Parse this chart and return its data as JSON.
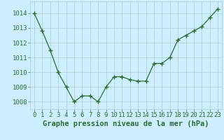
{
  "x": [
    0,
    1,
    2,
    3,
    4,
    5,
    6,
    7,
    8,
    9,
    10,
    11,
    12,
    13,
    14,
    15,
    16,
    17,
    18,
    19,
    20,
    21,
    22,
    23
  ],
  "y": [
    1014.0,
    1012.8,
    1011.5,
    1010.0,
    1009.0,
    1008.0,
    1008.4,
    1008.4,
    1008.0,
    1009.0,
    1009.7,
    1009.7,
    1009.5,
    1009.4,
    1009.4,
    1010.6,
    1010.6,
    1011.0,
    1012.2,
    1012.5,
    1012.8,
    1013.1,
    1013.7,
    1014.3
  ],
  "line_color": "#2d6a2d",
  "marker_color": "#2d6a2d",
  "bg_color": "#cceeff",
  "grid_color": "#aacccc",
  "xlabel": "Graphe pression niveau de la mer (hPa)",
  "xlabel_color": "#2d6a2d",
  "tick_color": "#2d6a2d",
  "ylim": [
    1007.5,
    1014.8
  ],
  "xlim": [
    -0.5,
    23.5
  ],
  "yticks": [
    1008,
    1009,
    1010,
    1011,
    1012,
    1013,
    1014
  ],
  "xtick_labels": [
    "0",
    "1",
    "2",
    "3",
    "4",
    "5",
    "6",
    "7",
    "8",
    "9",
    "10",
    "11",
    "12",
    "13",
    "14",
    "15",
    "16",
    "17",
    "18",
    "19",
    "20",
    "21",
    "22",
    "23"
  ],
  "tick_fontsize": 6.5,
  "label_fontsize": 7.5
}
